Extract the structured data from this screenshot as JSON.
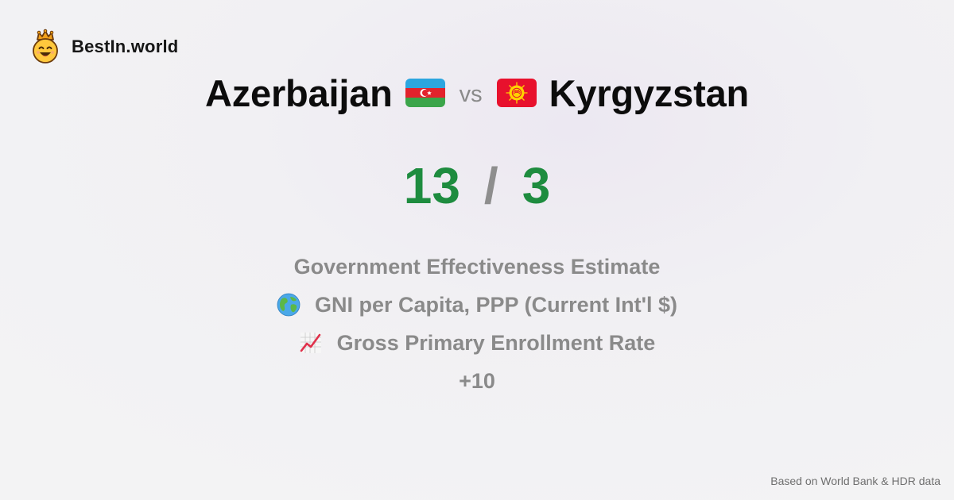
{
  "brand": {
    "name": "BestIn.world",
    "logo_icon": "crowned-smiley-icon"
  },
  "comparison": {
    "left_country": "Azerbaijan",
    "left_flag_icon": "azerbaijan-flag-icon",
    "vs_label": "vs",
    "right_country": "Kyrgyzstan",
    "right_flag_icon": "kyrgyzstan-flag-icon"
  },
  "score": {
    "left": "13",
    "separator": "/",
    "right": "3"
  },
  "metrics": {
    "items": [
      {
        "label": "Government Effectiveness Estimate",
        "icon": ""
      },
      {
        "label": "GNI per Capita, PPP (Current Int'l $)",
        "icon": "globe-icon"
      },
      {
        "label": "Gross Primary Enrollment Rate",
        "icon": "chart-increasing-icon"
      }
    ],
    "more": "+10"
  },
  "footer": {
    "source_note": "Based on World Bank & HDR data"
  },
  "colors": {
    "score_green": "#1e8c3f",
    "muted_gray": "#8a8a8a",
    "title_black": "#0c0c0c"
  }
}
